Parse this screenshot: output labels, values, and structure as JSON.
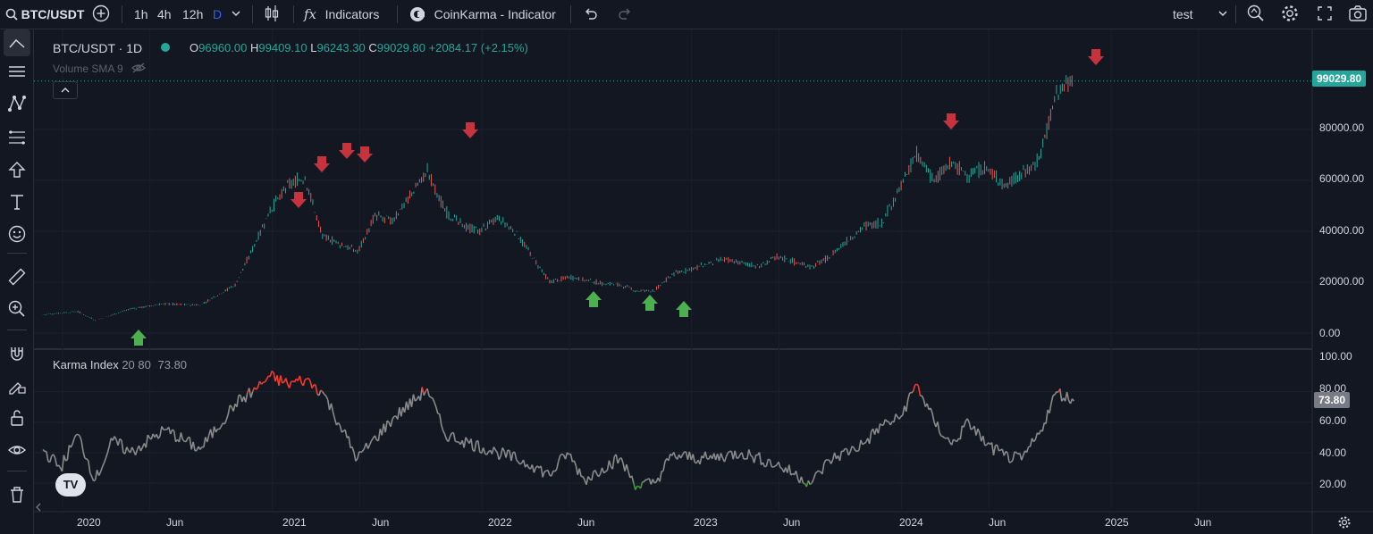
{
  "toolbar": {
    "symbol": "BTC/USDT",
    "intervals": [
      "1h",
      "4h",
      "12h",
      "D"
    ],
    "active_interval": "D",
    "indicators_label": "Indicators",
    "indicators_fx": "fx",
    "template_label": "CoinKarma - Indicator",
    "layout_name": "test"
  },
  "legend": {
    "title": "BTC/USDT · 1D",
    "o_label": "O",
    "o_value": "96960.00",
    "h_label": "H",
    "h_value": "99409.10",
    "l_label": "L",
    "l_value": "96243.30",
    "c_label": "C",
    "c_value": "99029.80",
    "change": "+2084.17 (+2.15%)",
    "volume": "Volume SMA 9"
  },
  "karma_legend": {
    "name": "Karma Index",
    "params": "20 80",
    "value": "73.80"
  },
  "price_axis": {
    "labels": [
      "80000.00",
      "60000.00",
      "40000.00",
      "20000.00",
      "0.00"
    ],
    "last_price": "99029.80"
  },
  "karma_axis": {
    "labels": [
      "100.00",
      "80.00",
      "60.00",
      "40.00",
      "20.00"
    ],
    "last_value": "73.80"
  },
  "time_axis": [
    "2020",
    "Jun",
    "2021",
    "Jun",
    "2022",
    "Jun",
    "2023",
    "Jun",
    "2024",
    "Jun",
    "2025",
    "Jun"
  ],
  "logo_text": "TV",
  "colors": {
    "up": "#26a69a",
    "down": "#ef5350",
    "bg": "#131722",
    "karma": "#8a8a8a",
    "karma_high": "#f23b2e",
    "karma_low": "#3f9c35",
    "signal_down": "#c7333c",
    "signal_up": "#4caf50",
    "accent": "#2962ff"
  },
  "chart_data": [
    {
      "type": "line",
      "title": "BTC/USDT · 1D",
      "x": [
        "2020-01",
        "2020-03",
        "2020-04",
        "2020-06",
        "2020-08",
        "2020-10",
        "2020-12",
        "2021-01",
        "2021-02",
        "2021-03",
        "2021-04",
        "2021-05",
        "2021-06",
        "2021-07",
        "2021-08",
        "2021-09",
        "2021-11",
        "2021-12",
        "2022-01",
        "2022-02",
        "2022-03",
        "2022-04",
        "2022-05",
        "2022-06",
        "2022-07",
        "2022-08",
        "2022-09",
        "2022-10",
        "2022-11",
        "2022-12",
        "2023-01",
        "2023-03",
        "2023-04",
        "2023-06",
        "2023-07",
        "2023-09",
        "2023-10",
        "2023-12",
        "2024-01",
        "2024-03",
        "2024-04",
        "2024-05",
        "2024-06",
        "2024-07",
        "2024-08",
        "2024-09",
        "2024-10",
        "2024-11",
        "2024-12"
      ],
      "series": [
        {
          "values": [
            7200,
            8500,
            5000,
            9500,
            11500,
            11000,
            19000,
            33000,
            48000,
            58000,
            61000,
            38000,
            35000,
            32000,
            46000,
            44000,
            64000,
            48000,
            42000,
            40000,
            45000,
            40000,
            30000,
            20000,
            22000,
            21000,
            19500,
            19000,
            16500,
            16800,
            23000,
            27000,
            29000,
            26000,
            30000,
            26000,
            30000,
            42000,
            43000,
            70000,
            60000,
            67000,
            62000,
            65000,
            58000,
            62000,
            68000,
            95000,
            99029.8
          ]
        }
      ],
      "ylim": [
        0,
        100000
      ],
      "signals_down": [
        "2021-01",
        "2021-02",
        "2021-04",
        "2021-05",
        "2021-11",
        "2024-03",
        "2024-12"
      ],
      "signals_up": [
        "2020-03",
        "2022-06",
        "2022-09",
        "2022-11"
      ]
    },
    {
      "type": "line",
      "title": "Karma Index",
      "x": [
        "2020-01",
        "2020-02",
        "2020-03",
        "2020-04",
        "2020-05",
        "2020-06",
        "2020-08",
        "2020-10",
        "2020-12",
        "2021-01",
        "2021-02",
        "2021-03",
        "2021-04",
        "2021-05",
        "2021-06",
        "2021-07",
        "2021-09",
        "2021-11",
        "2021-12",
        "2022-01",
        "2022-03",
        "2022-05",
        "2022-06",
        "2022-07",
        "2022-08",
        "2022-09",
        "2022-10",
        "2022-11",
        "2022-12",
        "2023-01",
        "2023-03",
        "2023-05",
        "2023-07",
        "2023-09",
        "2023-10",
        "2023-12",
        "2024-01",
        "2024-02",
        "2024-03",
        "2024-04",
        "2024-05",
        "2024-06",
        "2024-07",
        "2024-08",
        "2024-09",
        "2024-10",
        "2024-11",
        "2024-12"
      ],
      "series": [
        {
          "name": "Karma Index",
          "values": [
            42,
            30,
            52,
            22,
            48,
            40,
            55,
            42,
            72,
            80,
            90,
            85,
            88,
            80,
            58,
            36,
            62,
            82,
            52,
            48,
            40,
            32,
            25,
            40,
            22,
            30,
            36,
            18,
            20,
            38,
            36,
            40,
            32,
            20,
            35,
            46,
            58,
            62,
            85,
            60,
            45,
            60,
            45,
            38,
            35,
            52,
            80,
            73.8
          ]
        }
      ],
      "ylim": [
        10,
        105
      ],
      "thresholds": [
        20,
        80
      ]
    }
  ]
}
